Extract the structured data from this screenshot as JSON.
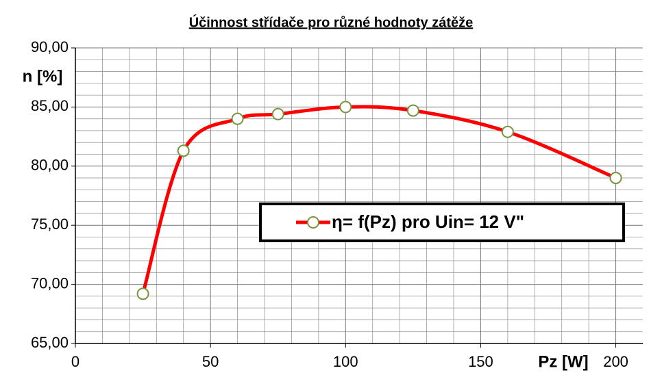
{
  "chart_data": {
    "type": "line",
    "title": "Účinnost střídače pro různé hodnoty zátěže",
    "ylabel": "n [%]",
    "xlabel": "Pz [W]",
    "x": [
      25,
      40,
      60,
      75,
      100,
      125,
      160,
      200
    ],
    "series": [
      {
        "name": "η= f(Pz) pro Uin= 12 V\"",
        "color": "#ff0000",
        "marker_color": "#77933c",
        "values": [
          69.2,
          81.3,
          84.0,
          84.4,
          85.0,
          84.7,
          82.9,
          79.0
        ]
      }
    ],
    "xlim": [
      0,
      210
    ],
    "ylim": [
      65,
      90
    ],
    "xticks": [
      0,
      50,
      100,
      150,
      200
    ],
    "yticks": [
      {
        "value": 65,
        "label": "65,00"
      },
      {
        "value": 70,
        "label": "70,00"
      },
      {
        "value": 75,
        "label": "75,00"
      },
      {
        "value": 80,
        "label": "80,00"
      },
      {
        "value": 85,
        "label": "85,00"
      },
      {
        "value": 90,
        "label": "90,00"
      }
    ],
    "x_minor_ticks": [
      10,
      20,
      30,
      40,
      60,
      70,
      80,
      90,
      110,
      120,
      130,
      140,
      160,
      170,
      180,
      190,
      200
    ],
    "y_minor_ticks": [
      66,
      67,
      68,
      69,
      71,
      72,
      73,
      74,
      76,
      77,
      78,
      79,
      81,
      82,
      83,
      84,
      86,
      87,
      88,
      89
    ],
    "grid": true,
    "smooth": true
  }
}
